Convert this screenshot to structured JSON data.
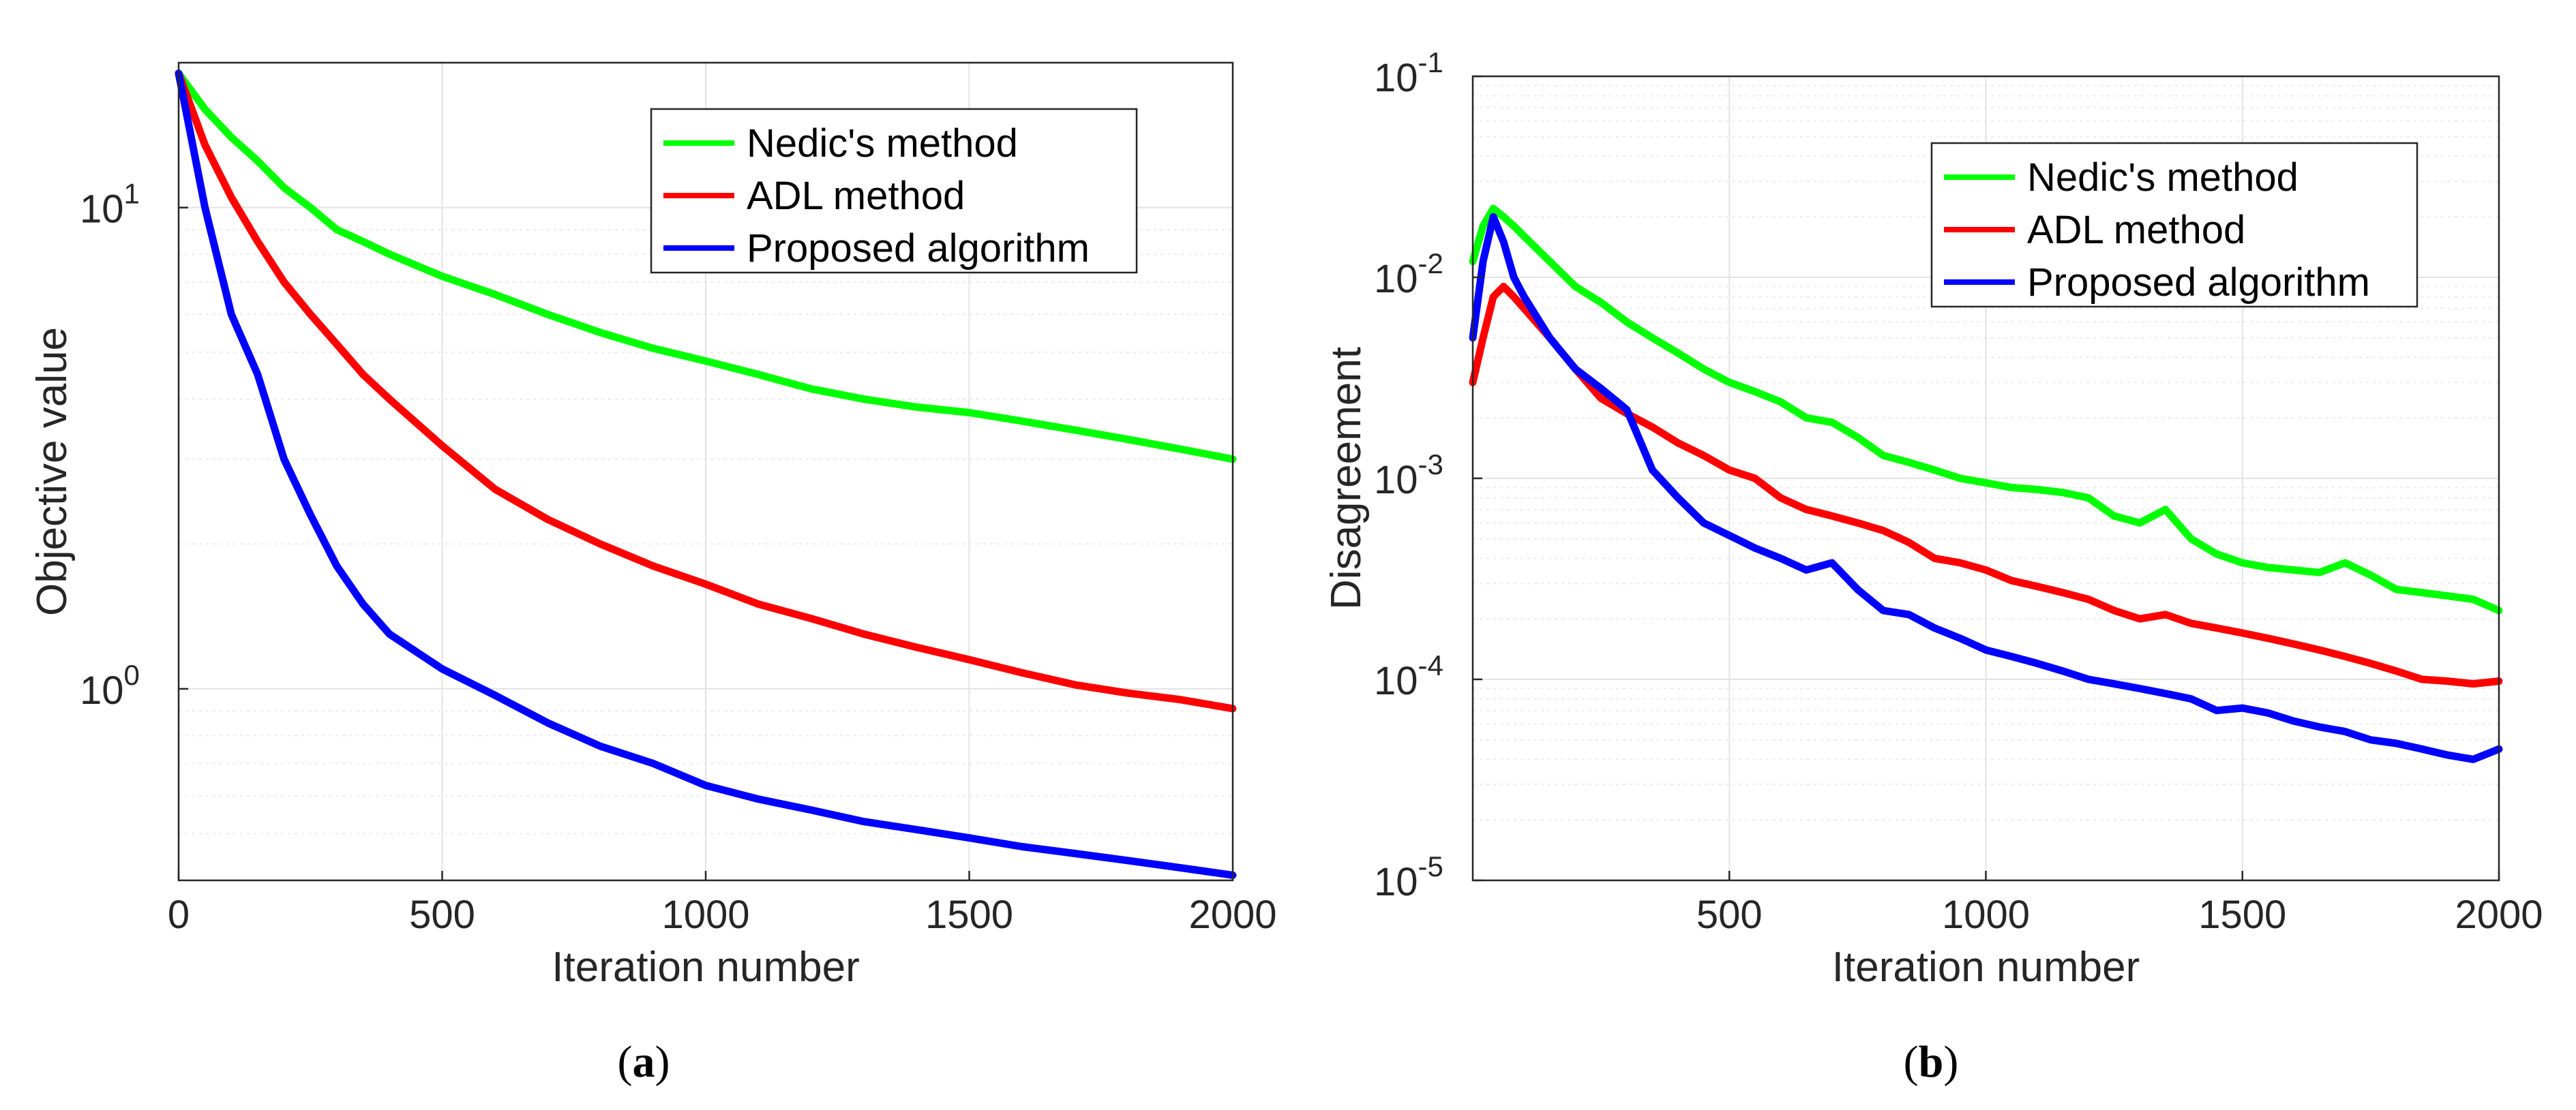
{
  "chart_data": [
    {
      "id": "a",
      "type": "line",
      "caption": "(a)",
      "caption_letter": "a",
      "xlabel": "Iteration number",
      "ylabel": "Objective value",
      "xlim": [
        0,
        2000
      ],
      "ylim": [
        0.4,
        20
      ],
      "yscale": "log",
      "xticks": [
        0,
        500,
        1000,
        1500,
        2000
      ],
      "xtick_labels": [
        "0",
        "500",
        "1000",
        "1500",
        "2000"
      ],
      "yticks": [
        {
          "value": 1,
          "base": "10",
          "exp": "0"
        },
        {
          "value": 10,
          "base": "10",
          "exp": "1"
        }
      ],
      "grid": true,
      "legend_position": "top-right",
      "x": [
        0,
        50,
        100,
        150,
        200,
        250,
        300,
        350,
        400,
        500,
        600,
        700,
        800,
        900,
        1000,
        1100,
        1200,
        1300,
        1400,
        1500,
        1600,
        1700,
        1800,
        1900,
        2000
      ],
      "series": [
        {
          "name": "Nedic's method",
          "color": "#00ff00",
          "values": [
            19,
            16,
            14,
            12.5,
            11,
            10,
            9,
            8.5,
            8,
            7.2,
            6.6,
            6.0,
            5.5,
            5.1,
            4.8,
            4.5,
            4.2,
            4.0,
            3.85,
            3.75,
            3.6,
            3.45,
            3.3,
            3.15,
            3.0
          ]
        },
        {
          "name": "ADL method",
          "color": "#ff0000",
          "values": [
            19,
            13.5,
            10.5,
            8.5,
            7.0,
            6.0,
            5.2,
            4.5,
            4.0,
            3.2,
            2.6,
            2.25,
            2.0,
            1.8,
            1.65,
            1.5,
            1.4,
            1.3,
            1.22,
            1.15,
            1.08,
            1.02,
            0.98,
            0.95,
            0.91
          ]
        },
        {
          "name": "Proposed algorithm",
          "color": "#0000ff",
          "values": [
            19,
            10,
            6.0,
            4.5,
            3.0,
            2.3,
            1.8,
            1.5,
            1.3,
            1.1,
            0.97,
            0.85,
            0.76,
            0.7,
            0.63,
            0.59,
            0.56,
            0.53,
            0.51,
            0.49,
            0.47,
            0.455,
            0.44,
            0.425,
            0.41
          ]
        }
      ]
    },
    {
      "id": "b",
      "type": "line",
      "caption": "(b)",
      "caption_letter": "b",
      "xlabel": "Iteration number",
      "ylabel": "Disagreement",
      "xlim": [
        0,
        2000
      ],
      "ylim": [
        1e-05,
        0.1
      ],
      "yscale": "log",
      "xticks": [
        500,
        1000,
        1500,
        2000
      ],
      "xtick_labels": [
        "500",
        "1000",
        "1500",
        "2000"
      ],
      "yticks": [
        {
          "value": 0.1,
          "base": "10",
          "exp": "-1"
        },
        {
          "value": 0.01,
          "base": "10",
          "exp": "-2"
        },
        {
          "value": 0.001,
          "base": "10",
          "exp": "-3"
        },
        {
          "value": 0.0001,
          "base": "10",
          "exp": "-4"
        },
        {
          "value": 1e-05,
          "base": "10",
          "exp": "-5"
        }
      ],
      "grid": true,
      "legend_position": "top-right",
      "x": [
        0,
        20,
        40,
        60,
        80,
        100,
        150,
        200,
        250,
        300,
        350,
        400,
        450,
        500,
        550,
        600,
        650,
        700,
        750,
        800,
        850,
        900,
        950,
        1000,
        1050,
        1100,
        1150,
        1200,
        1250,
        1300,
        1350,
        1400,
        1450,
        1500,
        1550,
        1600,
        1650,
        1700,
        1750,
        1800,
        1850,
        1900,
        1950,
        2000
      ],
      "series": [
        {
          "name": "Nedic's method",
          "color": "#00ff00",
          "values": [
            0.012,
            0.018,
            0.022,
            0.02,
            0.018,
            0.016,
            0.012,
            0.009,
            0.0075,
            0.006,
            0.005,
            0.0042,
            0.0035,
            0.003,
            0.0027,
            0.0024,
            0.002,
            0.0019,
            0.0016,
            0.0013,
            0.0012,
            0.0011,
            0.001,
            0.00095,
            0.0009,
            0.00088,
            0.00085,
            0.0008,
            0.00065,
            0.0006,
            0.0007,
            0.0005,
            0.00042,
            0.00038,
            0.00036,
            0.00035,
            0.00034,
            0.00038,
            0.00033,
            0.00028,
            0.00027,
            0.00026,
            0.00025,
            0.00022
          ]
        },
        {
          "name": "ADL method",
          "color": "#ff0000",
          "values": [
            0.003,
            0.005,
            0.008,
            0.009,
            0.008,
            0.007,
            0.005,
            0.0035,
            0.0025,
            0.0021,
            0.0018,
            0.0015,
            0.0013,
            0.0011,
            0.001,
            0.0008,
            0.0007,
            0.00065,
            0.0006,
            0.00055,
            0.00048,
            0.0004,
            0.00038,
            0.00035,
            0.00031,
            0.00029,
            0.00027,
            0.00025,
            0.00022,
            0.0002,
            0.00021,
            0.00019,
            0.00018,
            0.00017,
            0.00016,
            0.00015,
            0.00014,
            0.00013,
            0.00012,
            0.00011,
            0.0001,
            9.8e-05,
            9.5e-05,
            9.8e-05
          ]
        },
        {
          "name": "Proposed algorithm",
          "color": "#0000ff",
          "values": [
            0.005,
            0.012,
            0.02,
            0.015,
            0.01,
            0.008,
            0.005,
            0.0035,
            0.0028,
            0.0022,
            0.0011,
            0.0008,
            0.0006,
            0.00052,
            0.00045,
            0.0004,
            0.00035,
            0.00038,
            0.00028,
            0.00022,
            0.00021,
            0.00018,
            0.00016,
            0.00014,
            0.00013,
            0.00012,
            0.00011,
            0.0001,
            9.5e-05,
            9e-05,
            8.5e-05,
            8e-05,
            7e-05,
            7.2e-05,
            6.8e-05,
            6.2e-05,
            5.8e-05,
            5.5e-05,
            5e-05,
            4.8e-05,
            4.5e-05,
            4.2e-05,
            4e-05,
            4.5e-05
          ]
        }
      ]
    }
  ]
}
